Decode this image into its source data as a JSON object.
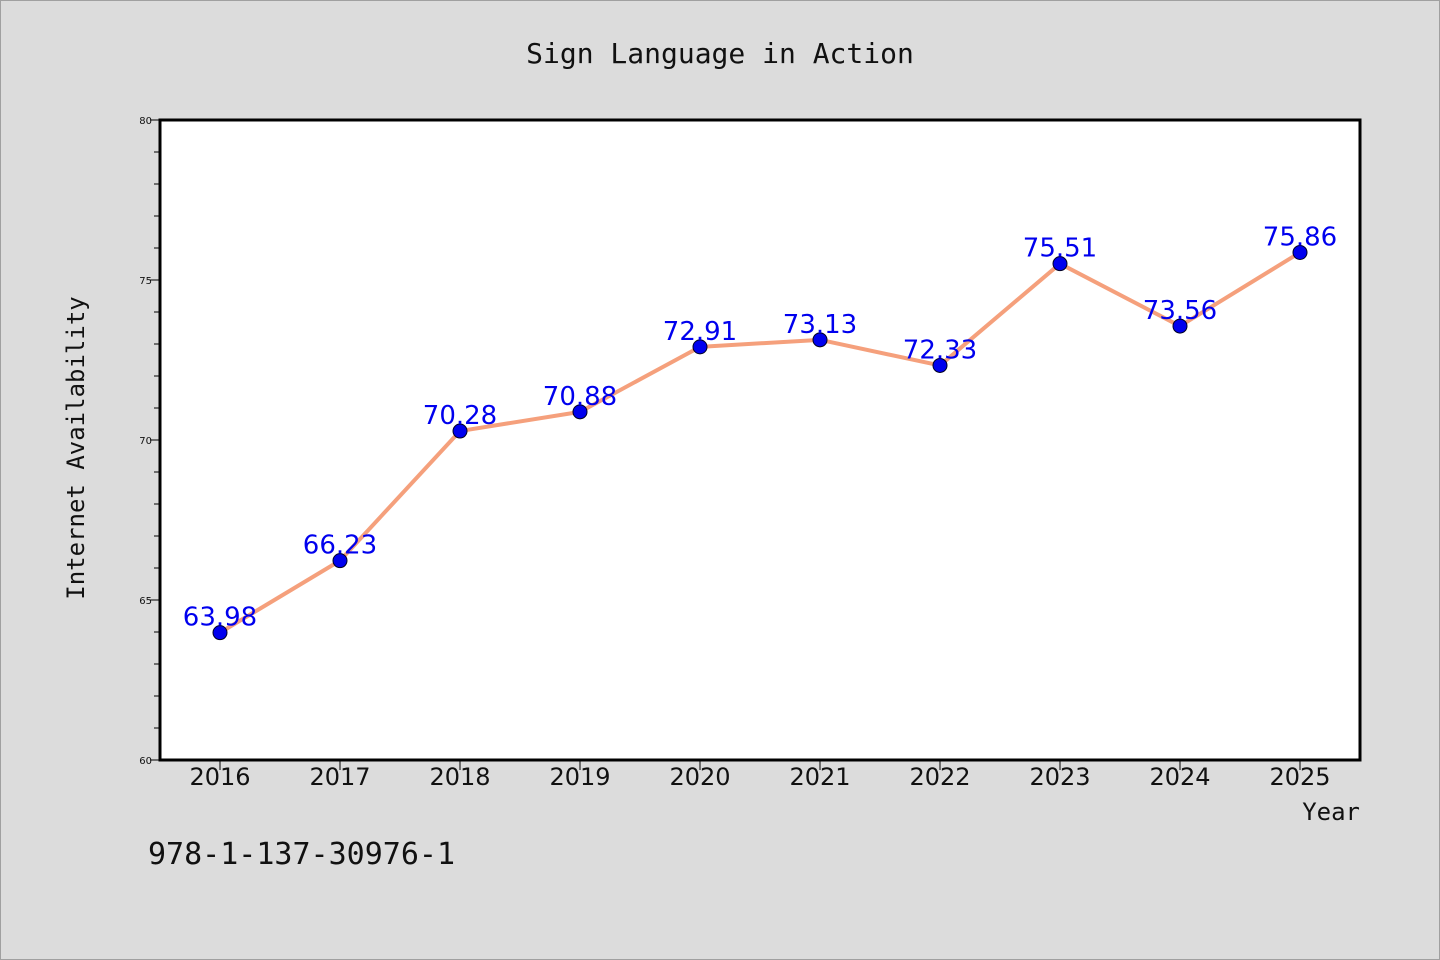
{
  "chart_data": {
    "type": "line",
    "title": "Sign Language in Action",
    "xlabel": "Year",
    "ylabel": "Internet Availability",
    "categories": [
      "2016",
      "2017",
      "2018",
      "2019",
      "2020",
      "2021",
      "2022",
      "2023",
      "2024",
      "2025"
    ],
    "series": [
      {
        "values": [
          63.98,
          66.23,
          70.28,
          70.88,
          72.91,
          73.13,
          72.33,
          75.51,
          73.56,
          75.86
        ],
        "data_labels": [
          "63.98",
          "66.23",
          "70.28",
          "70.88",
          "72.91",
          "73.13",
          "72.33",
          "75.51",
          "73.56",
          "75.86"
        ],
        "line_color": "#f5a07c",
        "marker_color": "#0000ee"
      }
    ],
    "ylim": [
      60,
      80
    ],
    "yticks": [
      60,
      65,
      70,
      75,
      80
    ],
    "ytick_labels": [
      "60",
      "65",
      "70",
      "75",
      "80"
    ],
    "grid": false,
    "label_color": "#0000ee"
  },
  "footer": {
    "isbn": "978-1-137-30976-1"
  },
  "colors": {
    "background": "#dcdcdc",
    "plot_background": "#ffffff"
  }
}
